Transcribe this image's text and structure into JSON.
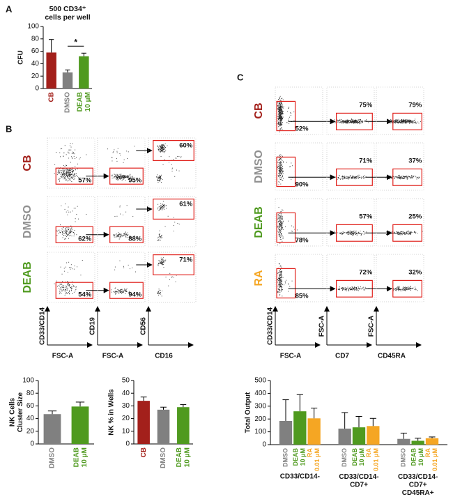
{
  "panel_labels": [
    "A",
    "B",
    "C"
  ],
  "chart_data": [
    {
      "type": "bar",
      "title": "500 CD34⁺\ncells per well",
      "ylabel": "CFU",
      "categories": [
        "CB",
        "DMSO",
        "DEAB\n10 μM"
      ],
      "values": [
        58,
        26,
        52
      ],
      "errors": [
        21,
        4,
        5
      ],
      "colors": [
        "#a3201b",
        "#808080",
        "#4f9a1f"
      ],
      "ylim": [
        0,
        100
      ],
      "yticks": [
        0,
        20,
        40,
        60,
        80,
        100
      ],
      "annotations": [
        "*"
      ]
    },
    {
      "type": "bar",
      "ylabel": "NK Cells\nCluster Size",
      "categories": [
        "DMSO",
        "DEAB\n10 μM"
      ],
      "values": [
        47,
        59
      ],
      "errors": [
        5,
        7
      ],
      "colors": [
        "#808080",
        "#4f9a1f"
      ],
      "ylim": [
        0,
        100
      ],
      "yticks": [
        0,
        20,
        40,
        60,
        80,
        100
      ]
    },
    {
      "type": "bar",
      "ylabel": "NK % in Wells",
      "categories": [
        "CB",
        "DMSO",
        "DEAB\n10 μM"
      ],
      "values": [
        34,
        27,
        29
      ],
      "errors": [
        3,
        2,
        2
      ],
      "colors": [
        "#a3201b",
        "#808080",
        "#4f9a1f"
      ],
      "ylim": [
        0,
        50
      ],
      "yticks": [
        0,
        10,
        20,
        30,
        40,
        50
      ]
    },
    {
      "type": "grouped_bar",
      "ylabel": "Total Output",
      "categories": [
        "CD33/CD14-",
        "CD33/CD14-\nCD7+",
        "CD33/CD14-\nCD7+\nCD45RA+"
      ],
      "series": [
        {
          "name": "DMSO",
          "color": "#808080",
          "values": [
            185,
            125,
            45
          ],
          "errors": [
            165,
            125,
            45
          ]
        },
        {
          "name": "DEAB\n10 μM",
          "color": "#4f9a1f",
          "values": [
            260,
            135,
            30
          ],
          "errors": [
            130,
            85,
            20
          ]
        },
        {
          "name": "RA\n0.01 μM",
          "color": "#f5a623",
          "values": [
            205,
            145,
            50
          ],
          "errors": [
            80,
            60,
            10
          ]
        }
      ],
      "ylim": [
        0,
        500
      ],
      "yticks": [
        0,
        100,
        200,
        300,
        400,
        500
      ]
    }
  ],
  "flow_b": {
    "rows": [
      {
        "label": "CB",
        "color": "#a3201b",
        "gates": [
          "57%",
          "95%",
          "60%"
        ]
      },
      {
        "label": "DMSO",
        "color": "#909090",
        "gates": [
          "62%",
          "88%",
          "61%"
        ]
      },
      {
        "label": "DEAB",
        "color": "#4f9a1f",
        "gates": [
          "54%",
          "94%",
          "71%"
        ]
      }
    ],
    "y_axes": [
      "CD33/CD14",
      "CD19",
      "CD56"
    ],
    "x_axes": [
      "FSC-A",
      "FSC-A",
      "CD16"
    ]
  },
  "flow_c": {
    "rows": [
      {
        "label": "CB",
        "color": "#a3201b",
        "gates": [
          "52%",
          "75%",
          "79%"
        ]
      },
      {
        "label": "DMSO",
        "color": "#909090",
        "gates": [
          "90%",
          "71%",
          "37%"
        ]
      },
      {
        "label": "DEAB",
        "color": "#4f9a1f",
        "gates": [
          "78%",
          "57%",
          "25%"
        ]
      },
      {
        "label": "RA",
        "color": "#f5a623",
        "gates": [
          "85%",
          "72%",
          "32%"
        ]
      }
    ],
    "y_axes": [
      "CD33/CD14",
      "FSC-A",
      "FSC-A"
    ],
    "x_axes": [
      "FSC-A",
      "CD7",
      "CD45RA"
    ]
  }
}
